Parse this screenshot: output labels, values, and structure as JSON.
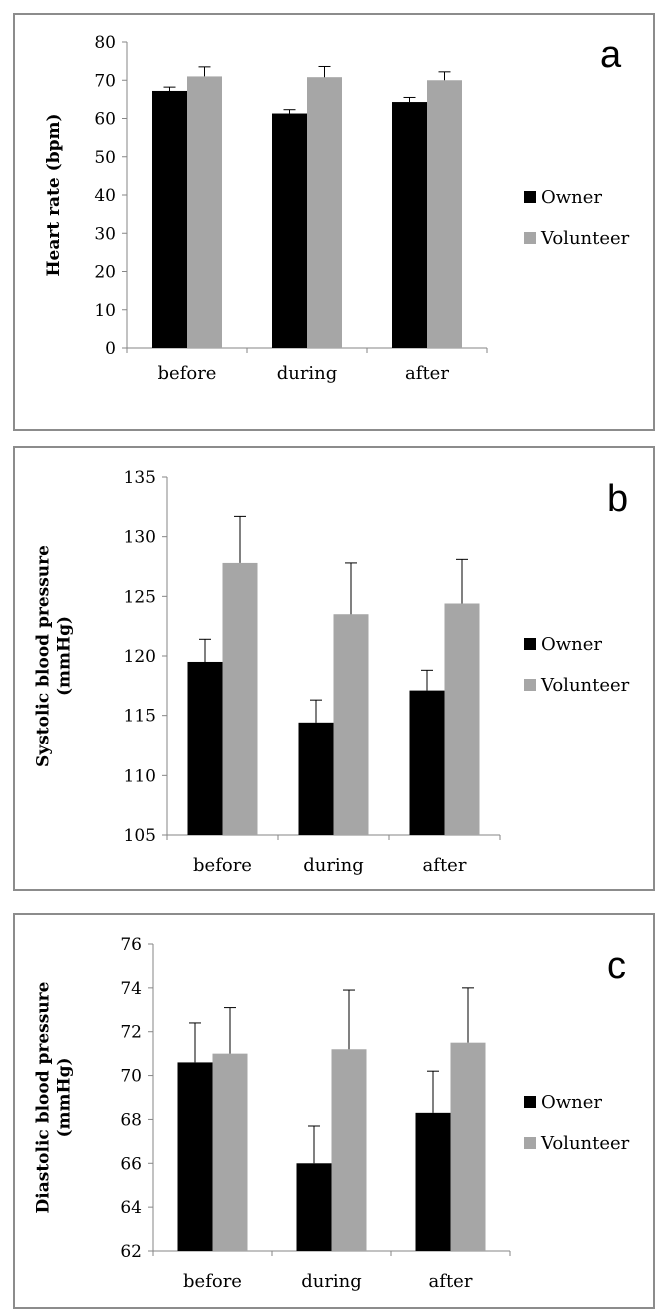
{
  "colors": {
    "owner": "#000000",
    "volunteer": "#a6a6a6",
    "axis": "#868686",
    "border": "#8c8c8c"
  },
  "chart_data": [
    {
      "type": "bar",
      "panel_label": "a",
      "ylabel_lines": [
        "Heart rate (bpm)"
      ],
      "categories": [
        "before",
        "during",
        "after"
      ],
      "ylim": [
        0,
        80
      ],
      "yticks": [
        "0",
        "10",
        "20",
        "30",
        "40",
        "50",
        "60",
        "70",
        "80"
      ],
      "series": [
        {
          "name": "Owner",
          "values": [
            67.2,
            61.3,
            64.3
          ],
          "errors": [
            1.0,
            1.0,
            1.2
          ]
        },
        {
          "name": "Volunteer",
          "values": [
            71.0,
            70.8,
            70.0
          ],
          "errors": [
            2.5,
            2.8,
            2.2
          ]
        }
      ],
      "legend": "right",
      "grid": false
    },
    {
      "type": "bar",
      "panel_label": "b",
      "ylabel_lines": [
        "Systolic blood pressure",
        "(mmHg)"
      ],
      "categories": [
        "before",
        "during",
        "after"
      ],
      "ylim": [
        105,
        135
      ],
      "yticks": [
        "105",
        "110",
        "115",
        "120",
        "125",
        "130",
        "135"
      ],
      "series": [
        {
          "name": "Owner",
          "values": [
            119.5,
            114.4,
            117.1
          ],
          "errors": [
            1.9,
            1.9,
            1.7
          ]
        },
        {
          "name": "Volunteer",
          "values": [
            127.8,
            123.5,
            124.4
          ],
          "errors": [
            3.9,
            4.3,
            3.7
          ]
        }
      ],
      "legend": "right",
      "grid": false
    },
    {
      "type": "bar",
      "panel_label": "c",
      "ylabel_lines": [
        "Diastolic blood pressure",
        "(mmHg)"
      ],
      "categories": [
        "before",
        "during",
        "after"
      ],
      "ylim": [
        62,
        76
      ],
      "yticks": [
        "62",
        "64",
        "66",
        "68",
        "70",
        "72",
        "74",
        "76"
      ],
      "series": [
        {
          "name": "Owner",
          "values": [
            70.6,
            66.0,
            68.3
          ],
          "errors": [
            1.8,
            1.7,
            1.9
          ]
        },
        {
          "name": "Volunteer",
          "values": [
            71.0,
            71.2,
            71.5
          ],
          "errors": [
            2.1,
            2.7,
            2.5
          ]
        }
      ],
      "legend": "right",
      "grid": false
    }
  ]
}
